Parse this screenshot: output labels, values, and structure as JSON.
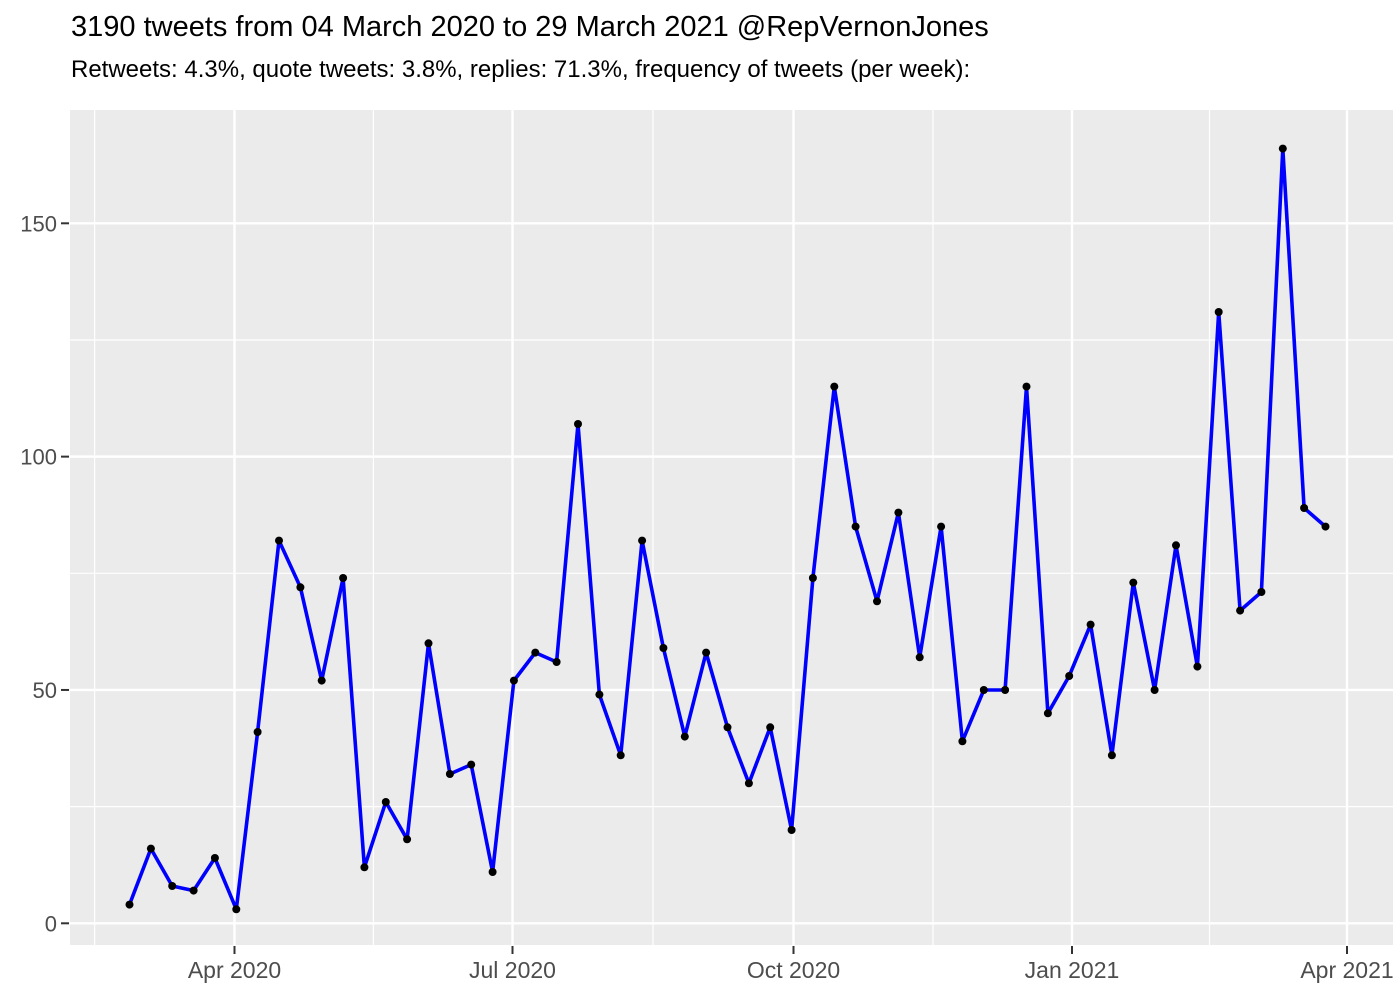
{
  "chart_data": {
    "type": "line",
    "title": "3190 tweets from 04 March 2020 to 29 March 2021 @RepVernonJones",
    "subtitle": "Retweets: 4.3%, quote tweets: 3.8%, replies: 71.3%, frequency of tweets (per week):",
    "xlabel": "",
    "ylabel": "",
    "x": [
      "2020-03-02",
      "2020-03-09",
      "2020-03-16",
      "2020-03-23",
      "2020-03-30",
      "2020-04-06",
      "2020-04-13",
      "2020-04-20",
      "2020-04-27",
      "2020-05-04",
      "2020-05-11",
      "2020-05-18",
      "2020-05-25",
      "2020-06-01",
      "2020-06-08",
      "2020-06-15",
      "2020-06-22",
      "2020-06-29",
      "2020-07-06",
      "2020-07-13",
      "2020-07-20",
      "2020-07-27",
      "2020-08-03",
      "2020-08-10",
      "2020-08-17",
      "2020-08-24",
      "2020-08-31",
      "2020-09-07",
      "2020-09-14",
      "2020-09-21",
      "2020-09-28",
      "2020-10-05",
      "2020-10-12",
      "2020-10-19",
      "2020-10-26",
      "2020-11-02",
      "2020-11-09",
      "2020-11-16",
      "2020-11-23",
      "2020-11-30",
      "2020-12-07",
      "2020-12-14",
      "2020-12-21",
      "2020-12-28",
      "2021-01-04",
      "2021-01-11",
      "2021-01-18",
      "2021-01-25",
      "2021-02-01",
      "2021-02-08",
      "2021-02-15",
      "2021-02-22",
      "2021-03-01",
      "2021-03-08",
      "2021-03-15",
      "2021-03-22",
      "2021-03-29"
    ],
    "series": [
      {
        "name": "tweets per week",
        "values": [
          4,
          16,
          8,
          7,
          14,
          3,
          41,
          82,
          72,
          52,
          74,
          12,
          26,
          18,
          60,
          32,
          34,
          11,
          52,
          58,
          56,
          107,
          49,
          36,
          82,
          59,
          40,
          58,
          42,
          30,
          42,
          20,
          74,
          115,
          85,
          69,
          88,
          57,
          85,
          39,
          50,
          50,
          115,
          45,
          53,
          64,
          36,
          73,
          50,
          81,
          55,
          131,
          67,
          71,
          166,
          89,
          85
        ]
      }
    ],
    "x_tick_labels": [
      "Apr 2020",
      "Jul 2020",
      "Oct 2020",
      "Jan 2021",
      "Apr 2021"
    ],
    "y_tick_labels": [
      "0",
      "50",
      "100",
      "150"
    ],
    "y_tick_values": [
      0,
      50,
      100,
      150
    ],
    "y_minor_values": [
      25,
      75,
      125
    ],
    "ylim": [
      -5,
      174
    ],
    "grid": "on",
    "legend_position": "none",
    "colors": {
      "line": "#0000FF",
      "point": "#000000",
      "panel_background": "#EBEBEB",
      "gridline": "#FFFFFF",
      "axis_text": "#4D4D4D",
      "tick_mark": "#333333",
      "title_text": "#000000"
    }
  }
}
